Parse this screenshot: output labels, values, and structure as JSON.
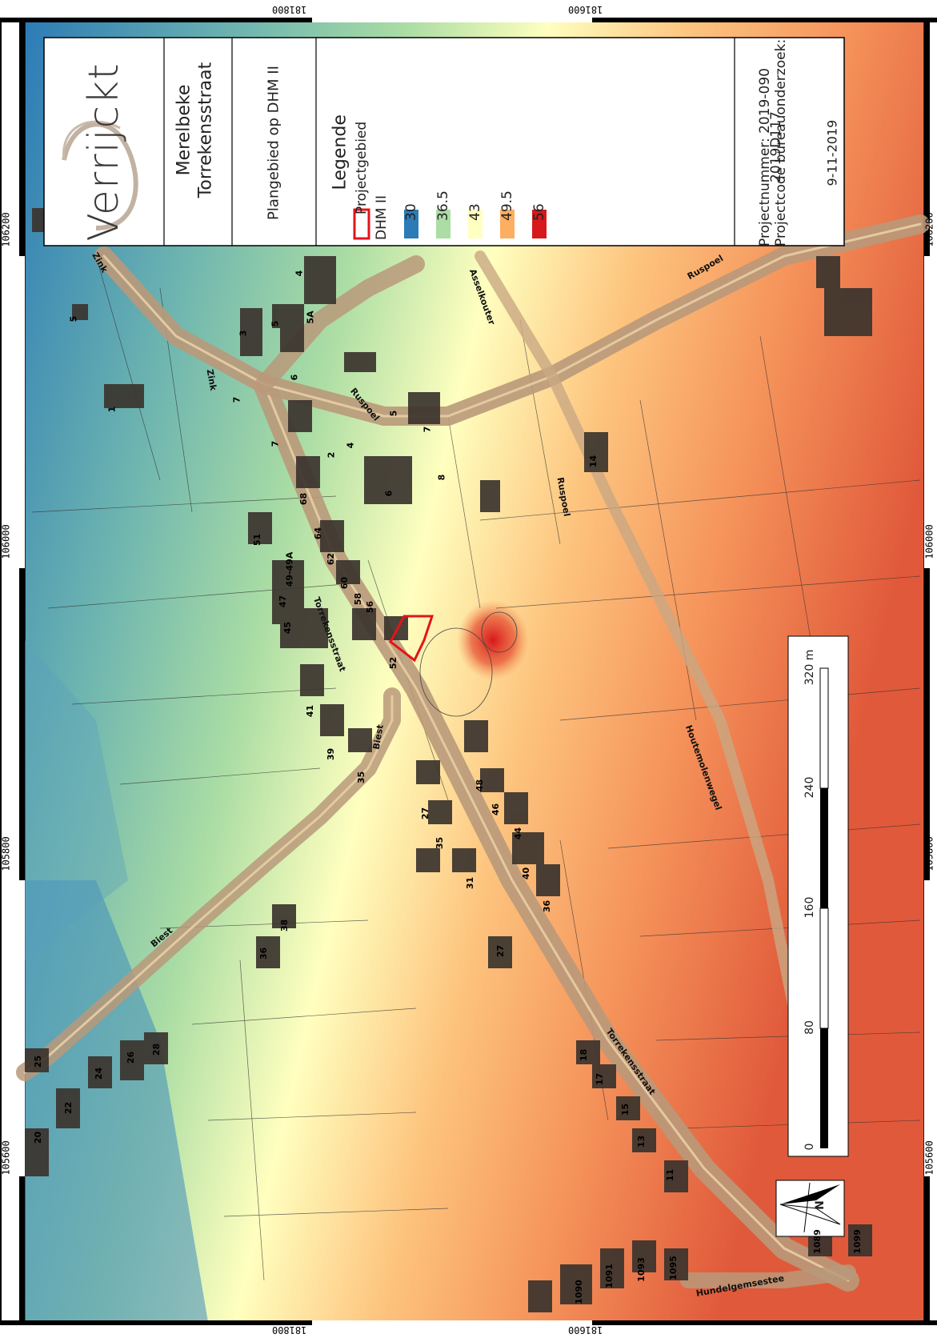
{
  "map": {
    "coords": {
      "top": [
        "181800",
        "181600"
      ],
      "bottom": [
        "181800",
        "181600"
      ],
      "left": [
        "106200",
        "106000",
        "105800",
        "105600"
      ],
      "right": [
        "106200",
        "106000",
        "105800",
        "105600"
      ]
    },
    "streets": [
      "Zink",
      "Zink",
      "Ruspoel",
      "Ruspoel",
      "Ruspoel",
      "Asselkouter",
      "Torrekensstraat",
      "Torrekensstraat",
      "Biest",
      "Biest",
      "Houtemolenwegel",
      "Hundelgemsestee"
    ],
    "house_numbers": [
      "5",
      "1",
      "3",
      "5",
      "6",
      "4",
      "5A",
      "7",
      "7",
      "7",
      "4",
      "2",
      "6",
      "8",
      "14",
      "5",
      "68",
      "64",
      "62",
      "60",
      "51",
      "49-49A",
      "47",
      "45",
      "58",
      "56",
      "52",
      "41",
      "39",
      "35",
      "27",
      "35",
      "31",
      "48",
      "46",
      "44",
      "40",
      "36",
      "27",
      "38",
      "36",
      "28",
      "26",
      "24",
      "22",
      "20",
      "25",
      "18",
      "17",
      "15",
      "13",
      "11",
      "1091",
      "1093",
      "1095",
      "1090",
      "1089",
      "1099"
    ]
  },
  "title_panel": {
    "logo_text": "Verrijckt",
    "location_line1": "Merelbeke",
    "location_line2": "Torrekensstraat",
    "subtitle": "Plangebied op DHM II",
    "legend_title": "Legende",
    "legend_project_area": "Projectgebied",
    "legend_dhm": "DHM II",
    "legend_classes": [
      {
        "label": "30",
        "color": "#2c7bb6"
      },
      {
        "label": "36.5",
        "color": "#abdda4"
      },
      {
        "label": "43",
        "color": "#ffffbf"
      },
      {
        "label": "49.5",
        "color": "#fdae61"
      },
      {
        "label": "56",
        "color": "#d7191c"
      }
    ],
    "project_number": "Projectnummer:  2019-090",
    "project_code_label": "Projectcode bureauonderzoek:",
    "project_code": "2019D117",
    "date": "9-11-2019"
  },
  "scale_bar": {
    "labels": [
      "0",
      "80",
      "160",
      "240",
      "320 m"
    ]
  },
  "north_arrow": {
    "label": "N"
  }
}
